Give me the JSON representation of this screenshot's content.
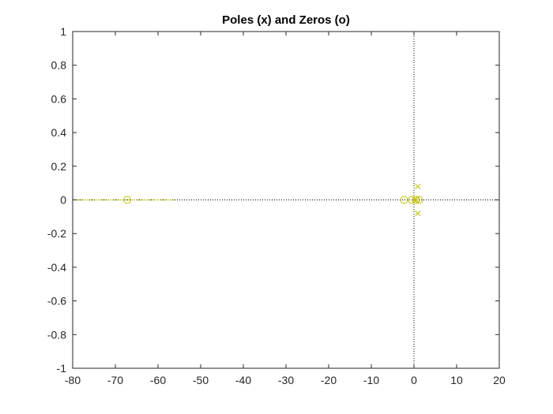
{
  "chart_data": {
    "type": "scatter",
    "title": "Poles (x) and Zeros (o)",
    "xlabel": "",
    "ylabel": "",
    "xlim": [
      -80,
      20
    ],
    "ylim": [
      -1,
      1
    ],
    "xticks": [
      "-80",
      "-70",
      "-60",
      "-50",
      "-40",
      "-30",
      "-20",
      "-10",
      "0",
      "10",
      "20"
    ],
    "yticks": [
      "-1",
      "-0.8",
      "-0.6",
      "-0.4",
      "-0.2",
      "0",
      "0.2",
      "0.4",
      "0.6",
      "0.8",
      "1"
    ],
    "xtick_values": [
      -80,
      -70,
      -60,
      -50,
      -40,
      -30,
      -20,
      -10,
      0,
      10,
      20
    ],
    "ytick_values": [
      -1,
      -0.8,
      -0.6,
      -0.4,
      -0.2,
      0,
      0.2,
      0.4,
      0.6,
      0.8,
      1
    ],
    "grid": false,
    "marker_color": "#bfbf00",
    "axis_color": "#262626",
    "reference_lines": {
      "x": 0,
      "y": 0,
      "style": "dotted"
    },
    "series": [
      {
        "marker": "o",
        "points": [
          [
            -67.2,
            0
          ],
          [
            -2.3,
            0
          ],
          [
            -0.5,
            0
          ],
          [
            0.5,
            0
          ],
          [
            1.2,
            0
          ]
        ]
      },
      {
        "marker": "x",
        "points": [
          [
            0.9,
            0.08
          ],
          [
            0.9,
            -0.08
          ],
          [
            0.6,
            0
          ],
          [
            0.2,
            0
          ]
        ]
      }
    ],
    "zero_locus_segment": {
      "x": [
        -80,
        -56
      ],
      "y": 0
    }
  }
}
